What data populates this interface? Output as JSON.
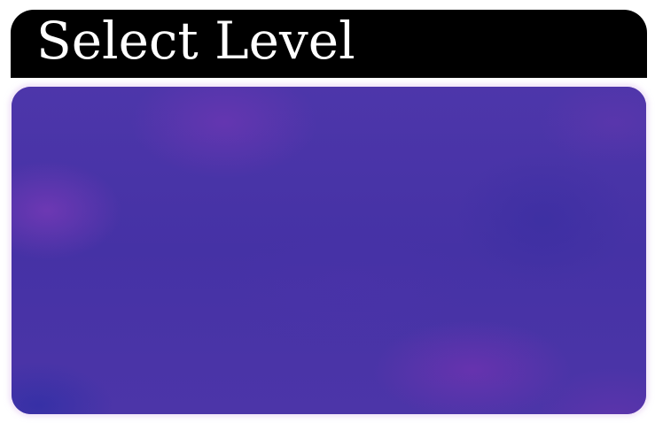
{
  "screen": {
    "title": "Select Level"
  },
  "colors": {
    "header_background": "#000000",
    "header_text": "#ffffff",
    "panel_background": "#4633a6",
    "panel_glow": "#e1c8f0",
    "page_background": "#ffffff"
  }
}
